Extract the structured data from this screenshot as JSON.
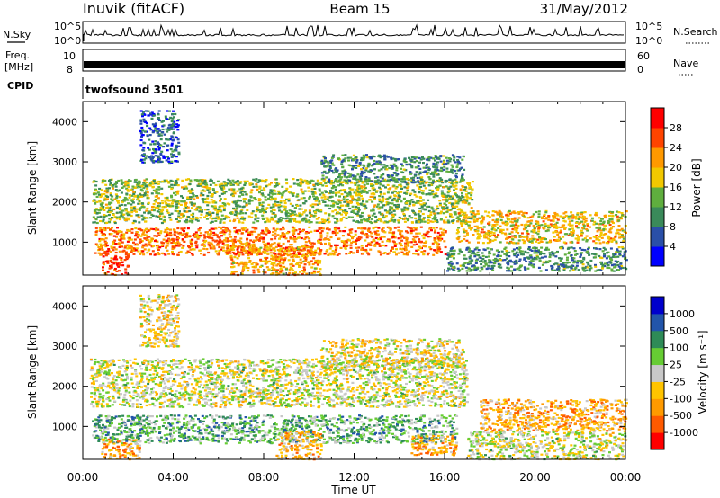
{
  "header": {
    "station": "Inuvik (fitACF)",
    "beam": "Beam 15",
    "date": "31/May/2012"
  },
  "strips": {
    "nsky_label": "N.Sky",
    "nsky_ticks": [
      "10^5",
      "10^0"
    ],
    "nsearch_label": "N.Search",
    "freq_label_1": "Freq.",
    "freq_label_2": "[MHz]",
    "freq_ticks": [
      "10",
      "8"
    ],
    "nave_label": "Nave",
    "nave_ticks": [
      "60",
      "0"
    ],
    "cpid_label": "CPID",
    "cpid_value": "twofsound 3501"
  },
  "colors": {
    "power_scale": [
      "#0000ff",
      "#2a4fa8",
      "#3a8a5a",
      "#5fae3e",
      "#f2c800",
      "#ff9900",
      "#ff4400",
      "#ff0000"
    ],
    "velocity_scale": [
      "#ff0000",
      "#ff5a00",
      "#ff9a00",
      "#ffc400",
      "#c8c8c8",
      "#66cc33",
      "#2e8b57",
      "#2255aa",
      "#0000cc"
    ]
  },
  "chart_data": [
    {
      "type": "heatmap",
      "name": "power",
      "xlabel": "Time UT",
      "ylabel": "Slant Range [km]",
      "xlim": [
        0,
        24
      ],
      "ylim": [
        180,
        4500
      ],
      "x_tick_labels": [
        "00:00",
        "04:00",
        "08:00",
        "12:00",
        "16:00",
        "20:00",
        "00:00"
      ],
      "y_ticks": [
        1000,
        2000,
        3000,
        4000
      ],
      "colorbar_label": "Power [dB]",
      "colorbar_ticks": [
        "28",
        "24",
        "20",
        "16",
        "12",
        "8",
        "4"
      ],
      "colorbar_range": [
        0,
        30
      ],
      "bands": [
        {
          "t0": 0.4,
          "t1": 17.2,
          "r0": 1500,
          "r1": 2600,
          "level": 14
        },
        {
          "t0": 0.5,
          "t1": 16.0,
          "r0": 700,
          "r1": 1400,
          "level": 22
        },
        {
          "t0": 16.5,
          "t1": 24.0,
          "r0": 1000,
          "r1": 1800,
          "level": 18
        },
        {
          "t0": 0.8,
          "t1": 2.0,
          "r0": 200,
          "r1": 700,
          "level": 26
        },
        {
          "t0": 6.5,
          "t1": 10.5,
          "r0": 200,
          "r1": 900,
          "level": 20
        },
        {
          "t0": 2.5,
          "t1": 4.2,
          "r0": 3000,
          "r1": 4300,
          "level": 6
        },
        {
          "t0": 10.5,
          "t1": 16.8,
          "r0": 2500,
          "r1": 3200,
          "level": 10
        },
        {
          "t0": 16.0,
          "t1": 24.0,
          "r0": 300,
          "r1": 900,
          "level": 10
        }
      ]
    },
    {
      "type": "heatmap",
      "name": "velocity",
      "xlabel": "Time UT",
      "ylabel": "Slant Range [km]",
      "xlim": [
        0,
        24
      ],
      "ylim": [
        180,
        4500
      ],
      "x_tick_labels": [
        "00:00",
        "04:00",
        "08:00",
        "12:00",
        "16:00",
        "20:00",
        "00:00"
      ],
      "y_ticks": [
        1000,
        2000,
        3000,
        4000
      ],
      "colorbar_label": "Velocity [m s⁻¹]",
      "colorbar_ticks": [
        "1000",
        "500",
        "100",
        "25",
        "-25",
        "-100",
        "-500",
        "-1000"
      ],
      "colorbar_range": [
        -1000,
        1000
      ],
      "bands": [
        {
          "t0": 0.3,
          "t1": 17.0,
          "r0": 1500,
          "r1": 2700,
          "level": 0
        },
        {
          "t0": 0.4,
          "t1": 16.5,
          "r0": 600,
          "r1": 1300,
          "level": 300
        },
        {
          "t0": 17.5,
          "t1": 24.0,
          "r0": 900,
          "r1": 1700,
          "level": -350
        },
        {
          "t0": 0.8,
          "t1": 2.5,
          "r0": 200,
          "r1": 700,
          "level": -350
        },
        {
          "t0": 8.5,
          "t1": 10.5,
          "r0": 200,
          "r1": 900,
          "level": -300
        },
        {
          "t0": 14.5,
          "t1": 16.5,
          "r0": 300,
          "r1": 800,
          "level": -400
        },
        {
          "t0": 2.5,
          "t1": 4.2,
          "r0": 3000,
          "r1": 4300,
          "level": -150
        },
        {
          "t0": 10.5,
          "t1": 16.8,
          "r0": 2500,
          "r1": 3200,
          "level": -120
        },
        {
          "t0": 17.0,
          "t1": 24.0,
          "r0": 200,
          "r1": 900,
          "level": 0
        }
      ]
    }
  ]
}
